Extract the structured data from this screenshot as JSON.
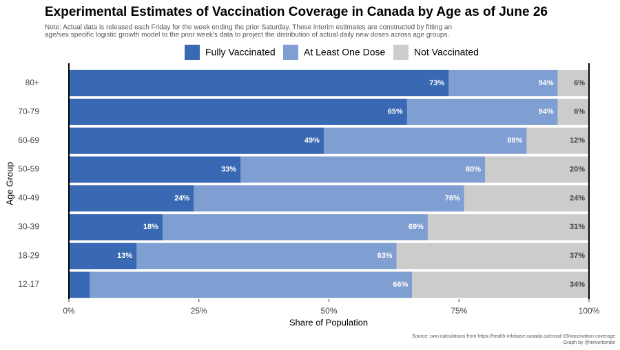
{
  "chart_data": {
    "type": "bar",
    "orientation": "horizontal",
    "title": "Experimental Estimates of Vaccination Coverage in Canada by Age as of June 26",
    "subtitle": [
      "Note: Actual data is released each Friday for the week ending the prior Saturday. These interim estimates are constructed by fitting an",
      "age/sex specific logistic growth model to the prior week's data to project the distribution of actual daily new doses across age groups."
    ],
    "x_label": "Share of Population",
    "y_label": "Age Group",
    "caption": [
      "Source: own calculations from https://health-infobase.canada.ca/covid-19/vaccination-coverage",
      "Graph by @trevortombe"
    ],
    "categories": [
      "80+",
      "70-79",
      "60-69",
      "50-59",
      "40-49",
      "30-39",
      "18-29",
      "12-17"
    ],
    "series": [
      {
        "name": "Fully Vaccinated",
        "color": "#3a69b3",
        "values": [
          73,
          65,
          49,
          33,
          24,
          18,
          13,
          4
        ],
        "value_labels": [
          "73%",
          "65%",
          "49%",
          "33%",
          "24%",
          "18%",
          "13%",
          null
        ]
      },
      {
        "name": "At Least One Dose",
        "color": "#7f9ed1",
        "values": [
          94,
          94,
          88,
          80,
          76,
          69,
          63,
          66
        ],
        "value_labels": [
          "94%",
          "94%",
          "88%",
          "80%",
          "76%",
          "69%",
          "63%",
          "66%"
        ]
      },
      {
        "name": "Not Vaccinated",
        "color": "#cccccc",
        "values": [
          6,
          6,
          12,
          20,
          24,
          31,
          37,
          34
        ],
        "value_labels": [
          "6%",
          "6%",
          "12%",
          "20%",
          "24%",
          "31%",
          "37%",
          "34%"
        ]
      }
    ],
    "xlim": [
      0,
      100
    ],
    "xticks": [
      {
        "value": 0,
        "label": "0%"
      },
      {
        "value": 25,
        "label": "25%"
      },
      {
        "value": 50,
        "label": "50%"
      },
      {
        "value": 75,
        "label": "75%"
      },
      {
        "value": 100,
        "label": "100%"
      }
    ],
    "legend_position": "top",
    "grid": false
  }
}
